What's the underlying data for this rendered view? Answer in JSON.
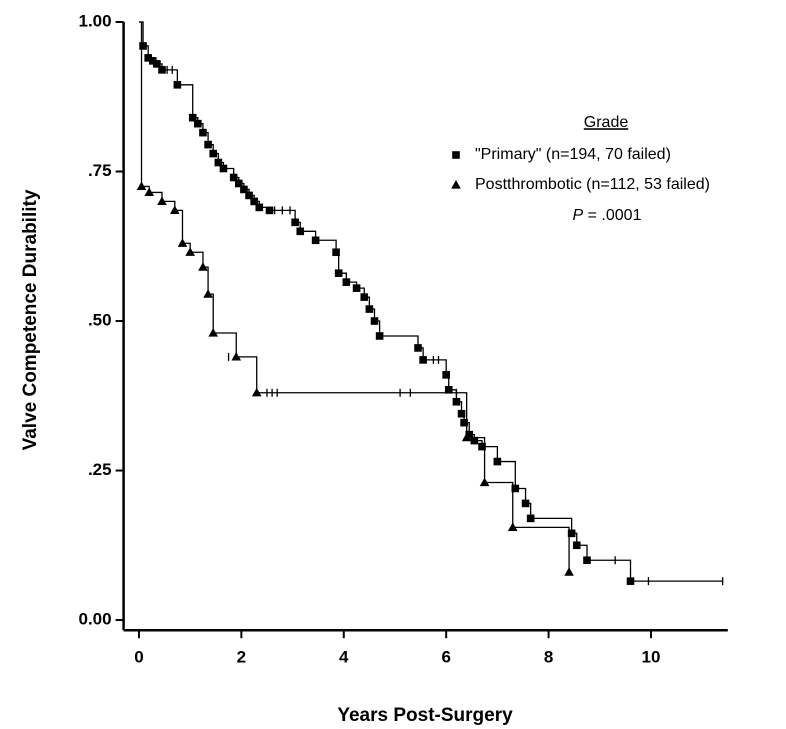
{
  "chart_data": {
    "type": "step",
    "x_label": "Years Post-Surgery",
    "y_label": "Valve Competence Durability",
    "xlim": [
      -0.3,
      11.5
    ],
    "ylim": [
      -0.017,
      1.0
    ],
    "xticks": [
      0,
      2,
      4,
      6,
      8,
      10
    ],
    "yticks": [
      {
        "value": 0,
        "label": "0.00"
      },
      {
        "value": 0.25,
        "label": ".25"
      },
      {
        "value": 0.5,
        "label": ".50"
      },
      {
        "value": 0.75,
        "label": ".75"
      },
      {
        "value": 1.0,
        "label": "1.00"
      }
    ],
    "start": [
      0,
      1.0
    ],
    "legend_title": "Grade",
    "legend_position": "upper right",
    "annotation": [
      "P",
      " = .0001"
    ],
    "series": [
      {
        "name": "\"Primary\" (n=194, 70 failed)",
        "color": "#000000",
        "marker": "square",
        "x": [
          0.08,
          0.18,
          0.27,
          0.35,
          0.45,
          0.75,
          1.05,
          1.15,
          1.25,
          1.35,
          1.45,
          1.55,
          1.65,
          1.85,
          1.95,
          2.05,
          2.15,
          2.25,
          2.35,
          2.55,
          3.05,
          3.15,
          3.45,
          3.85,
          3.9,
          4.05,
          4.25,
          4.4,
          4.5,
          4.6,
          4.7,
          5.45,
          5.55,
          6.0,
          6.05,
          6.2,
          6.3,
          6.35,
          6.45,
          6.55,
          6.7,
          7.0,
          7.35,
          7.55,
          7.65,
          8.45,
          8.55,
          8.75,
          9.6
        ],
        "values": [
          0.96,
          0.94,
          0.935,
          0.93,
          0.92,
          0.895,
          0.84,
          0.83,
          0.815,
          0.795,
          0.78,
          0.765,
          0.755,
          0.74,
          0.73,
          0.72,
          0.71,
          0.7,
          0.69,
          0.685,
          0.665,
          0.65,
          0.635,
          0.615,
          0.58,
          0.565,
          0.555,
          0.54,
          0.52,
          0.5,
          0.475,
          0.455,
          0.435,
          0.41,
          0.385,
          0.365,
          0.345,
          0.33,
          0.31,
          0.3,
          0.29,
          0.265,
          0.22,
          0.195,
          0.17,
          0.145,
          0.125,
          0.1,
          0.065
        ],
        "censored_x": [
          0.55,
          0.65,
          2.65,
          2.8,
          2.95,
          5.75,
          5.85,
          9.3,
          9.95,
          11.4
        ],
        "censored_values": [
          0.92,
          0.92,
          0.685,
          0.685,
          0.685,
          0.435,
          0.435,
          0.1,
          0.065,
          0.065
        ]
      },
      {
        "name": "Postthrombotic (n=112, 53 failed)",
        "color": "#000000",
        "marker": "triangle",
        "x": [
          0.05,
          0.2,
          0.45,
          0.7,
          0.85,
          1.0,
          1.25,
          1.35,
          1.45,
          1.9,
          2.3,
          6.4,
          6.75,
          7.3,
          8.4
        ],
        "values": [
          0.725,
          0.715,
          0.7,
          0.685,
          0.63,
          0.615,
          0.59,
          0.545,
          0.48,
          0.44,
          0.38,
          0.305,
          0.23,
          0.155,
          0.08
        ],
        "censored_x": [
          1.75,
          2.5,
          2.6,
          2.7,
          5.1,
          5.3,
          6.2
        ],
        "censored_values": [
          0.44,
          0.38,
          0.38,
          0.38,
          0.38,
          0.38,
          0.38
        ]
      }
    ]
  }
}
